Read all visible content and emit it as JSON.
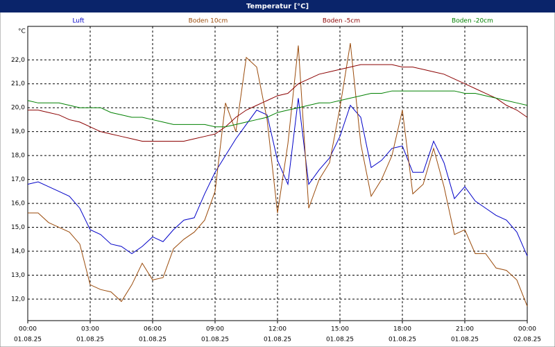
{
  "chart_data": {
    "type": "line",
    "title": "Temperatur [°C]",
    "y_unit": "°C",
    "x": [
      0,
      0.5,
      1,
      1.5,
      2,
      2.5,
      3,
      3.5,
      4,
      4.5,
      5,
      5.5,
      6,
      6.5,
      7,
      7.5,
      8,
      8.5,
      9,
      9.5,
      10,
      10.5,
      11,
      11.5,
      12,
      12.5,
      13,
      13.5,
      14,
      14.5,
      15,
      15.5,
      16,
      16.5,
      17,
      17.5,
      18,
      18.5,
      19,
      19.5,
      20,
      20.5,
      21,
      21.5,
      22,
      22.5,
      23,
      23.5,
      24
    ],
    "xlim": [
      0,
      24
    ],
    "xticks": [
      {
        "value": 0,
        "label": "00:00"
      },
      {
        "value": 3,
        "label": "03:00"
      },
      {
        "value": 6,
        "label": "06:00"
      },
      {
        "value": 9,
        "label": "09:00"
      },
      {
        "value": 12,
        "label": "12:00"
      },
      {
        "value": 15,
        "label": "15:00"
      },
      {
        "value": 18,
        "label": "18:00"
      },
      {
        "value": 21,
        "label": "21:00"
      },
      {
        "value": 24,
        "label": "00:00"
      }
    ],
    "xtick_dates": [
      "01.08.25",
      "01.08.25",
      "01.08.25",
      "01.08.25",
      "01.08.25",
      "01.08.25",
      "01.08.25",
      "01.08.25",
      "02.08.25"
    ],
    "ylim": [
      11.1,
      23.4
    ],
    "yticks": [
      {
        "value": 12,
        "label": "12,0"
      },
      {
        "value": 13,
        "label": "13,0"
      },
      {
        "value": 14,
        "label": "14,0"
      },
      {
        "value": 15,
        "label": "15,0"
      },
      {
        "value": 16,
        "label": "16,0"
      },
      {
        "value": 17,
        "label": "17,0"
      },
      {
        "value": 18,
        "label": "18,0"
      },
      {
        "value": 19,
        "label": "19,0"
      },
      {
        "value": 20,
        "label": "20,0"
      },
      {
        "value": 21,
        "label": "21,0"
      },
      {
        "value": 22,
        "label": "22,0"
      }
    ],
    "grid": true,
    "series": [
      {
        "name": "Luft",
        "color": "#0000c8",
        "values": [
          16.8,
          16.9,
          16.7,
          16.5,
          16.3,
          15.8,
          14.9,
          14.7,
          14.3,
          14.2,
          13.9,
          14.2,
          14.6,
          14.4,
          14.9,
          15.3,
          15.4,
          16.4,
          17.3,
          18.0,
          18.7,
          19.3,
          19.9,
          19.7,
          17.8,
          16.8,
          20.4,
          16.8,
          17.4,
          17.9,
          18.8,
          20.1,
          19.6,
          17.5,
          17.8,
          18.3,
          18.4,
          17.3,
          17.3,
          18.6,
          17.7,
          16.2,
          16.7,
          16.1,
          15.8,
          15.5,
          15.3,
          14.8,
          13.8
        ]
      },
      {
        "name": "Boden 10cm",
        "color": "#9a4a0a",
        "values": [
          15.6,
          15.6,
          15.2,
          15.0,
          14.8,
          14.3,
          12.6,
          12.4,
          12.3,
          11.9,
          12.6,
          13.5,
          12.8,
          12.9,
          14.1,
          14.5,
          14.8,
          15.3,
          16.5,
          20.2,
          19.0,
          22.1,
          21.7,
          19.5,
          15.6,
          18.5,
          22.6,
          15.8,
          17.0,
          17.7,
          20.0,
          22.7,
          18.5,
          16.3,
          17.0,
          18.0,
          19.9,
          16.4,
          16.8,
          18.3,
          16.7,
          14.7,
          14.9,
          13.9,
          13.9,
          13.3,
          13.2,
          12.8,
          11.7
        ]
      },
      {
        "name": "Boden -5cm",
        "color": "#8b0000",
        "values": [
          19.9,
          19.9,
          19.8,
          19.7,
          19.5,
          19.4,
          19.2,
          19.0,
          18.9,
          18.8,
          18.7,
          18.6,
          18.6,
          18.6,
          18.6,
          18.6,
          18.7,
          18.8,
          18.9,
          19.2,
          19.6,
          19.9,
          20.1,
          20.3,
          20.5,
          20.6,
          21.0,
          21.2,
          21.4,
          21.5,
          21.6,
          21.7,
          21.8,
          21.8,
          21.8,
          21.8,
          21.7,
          21.7,
          21.6,
          21.5,
          21.4,
          21.2,
          21.0,
          20.8,
          20.6,
          20.4,
          20.1,
          19.9,
          19.6
        ]
      },
      {
        "name": "Boden -20cm",
        "color": "#008000",
        "values": [
          20.3,
          20.2,
          20.2,
          20.2,
          20.1,
          20.0,
          20.0,
          20.0,
          19.8,
          19.7,
          19.6,
          19.6,
          19.5,
          19.4,
          19.3,
          19.3,
          19.3,
          19.3,
          19.2,
          19.2,
          19.3,
          19.4,
          19.5,
          19.6,
          19.8,
          19.9,
          20.0,
          20.1,
          20.2,
          20.2,
          20.3,
          20.4,
          20.5,
          20.6,
          20.6,
          20.7,
          20.7,
          20.7,
          20.7,
          20.7,
          20.7,
          20.7,
          20.6,
          20.6,
          20.5,
          20.4,
          20.3,
          20.2,
          20.1
        ]
      }
    ]
  }
}
